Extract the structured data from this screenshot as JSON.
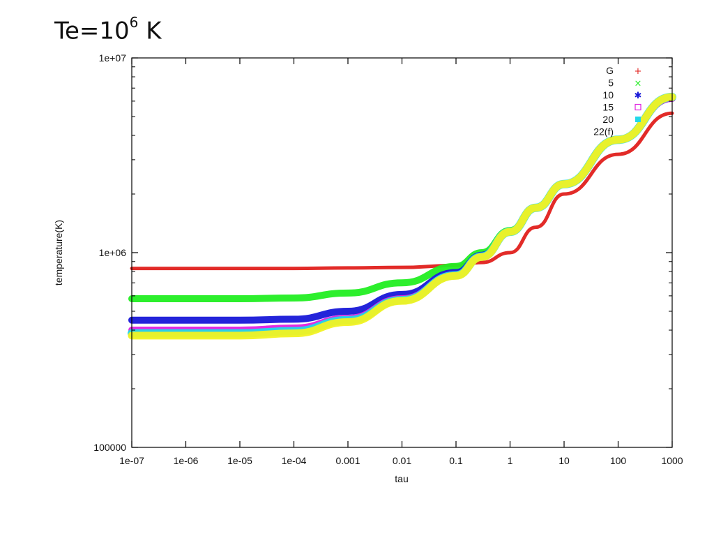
{
  "title": {
    "prefix": "Te=10",
    "exponent": "6",
    "suffix": " K"
  },
  "chart_data": {
    "type": "line",
    "xscale": "log",
    "yscale": "log",
    "xlim": [
      1e-07,
      1000
    ],
    "ylim": [
      100000,
      10000000
    ],
    "xlabel": "tau",
    "ylabel": "temperature(K)",
    "xticks": [
      {
        "value": 1e-07,
        "label": "1e-07"
      },
      {
        "value": 1e-06,
        "label": "1e-06"
      },
      {
        "value": 1e-05,
        "label": "1e-05"
      },
      {
        "value": 0.0001,
        "label": "1e-04"
      },
      {
        "value": 0.001,
        "label": "0.001"
      },
      {
        "value": 0.01,
        "label": "0.01"
      },
      {
        "value": 0.1,
        "label": "0.1"
      },
      {
        "value": 1,
        "label": "1"
      },
      {
        "value": 10,
        "label": "10"
      },
      {
        "value": 100,
        "label": "100"
      },
      {
        "value": 1000,
        "label": "1000"
      }
    ],
    "yticks": [
      {
        "value": 100000,
        "label": "100000"
      },
      {
        "value": 1000000,
        "label": "1e+06"
      },
      {
        "value": 10000000,
        "label": "1e+07"
      }
    ],
    "legend_position": "top-right",
    "series": [
      {
        "name": "G",
        "marker": "+",
        "color": "#e0201c",
        "x": [
          1e-07,
          1e-06,
          1e-05,
          0.0001,
          0.001,
          0.01,
          0.1,
          0.3,
          1,
          3,
          10,
          100,
          1000
        ],
        "y": [
          830000,
          830000,
          830000,
          830000,
          835000,
          840000,
          860000,
          890000,
          1000000,
          1350000,
          2000000,
          3200000,
          5200000
        ]
      },
      {
        "name": "5",
        "marker": "×",
        "color": "#22ee22",
        "x": [
          1e-07,
          1e-06,
          1e-05,
          0.0001,
          0.001,
          0.01,
          0.1,
          0.3,
          1,
          3,
          10,
          100,
          1000
        ],
        "y": [
          580000,
          580000,
          580000,
          585000,
          620000,
          700000,
          850000,
          1000000,
          1300000,
          1700000,
          2250000,
          3800000,
          6200000
        ]
      },
      {
        "name": "10",
        "marker": "✱",
        "color": "#1818d8",
        "x": [
          1e-07,
          1e-06,
          1e-05,
          0.0001,
          0.001,
          0.01,
          0.1,
          0.3,
          1,
          3,
          10,
          100,
          1000
        ],
        "y": [
          450000,
          450000,
          450000,
          455000,
          500000,
          610000,
          790000,
          970000,
          1280000,
          1700000,
          2250000,
          3800000,
          6200000
        ]
      },
      {
        "name": "15",
        "marker": "□",
        "color": "#e020e0",
        "x": [
          1e-07,
          1e-06,
          1e-05,
          0.0001,
          0.001,
          0.01,
          0.1,
          0.3,
          1,
          3,
          10,
          100,
          1000
        ],
        "y": [
          400000,
          400000,
          400000,
          410000,
          460000,
          580000,
          770000,
          960000,
          1280000,
          1700000,
          2250000,
          3800000,
          6200000
        ]
      },
      {
        "name": "20",
        "marker": "■",
        "color": "#22d8e8",
        "x": [
          1e-07,
          1e-06,
          1e-05,
          0.0001,
          0.001,
          0.01,
          0.1,
          0.3,
          1,
          3,
          10,
          100,
          1000
        ],
        "y": [
          385000,
          385000,
          385000,
          395000,
          450000,
          570000,
          765000,
          955000,
          1280000,
          1700000,
          2250000,
          3800000,
          6300000
        ]
      },
      {
        "name": "22(f)",
        "marker": "",
        "color": "#f2f222",
        "x": [
          1e-07,
          1e-06,
          1e-05,
          0.0001,
          0.001,
          0.01,
          0.1,
          0.3,
          1,
          3,
          10,
          100,
          1000
        ],
        "y": [
          375000,
          375000,
          375000,
          385000,
          440000,
          565000,
          760000,
          950000,
          1280000,
          1700000,
          2250000,
          3800000,
          6300000
        ]
      }
    ]
  }
}
